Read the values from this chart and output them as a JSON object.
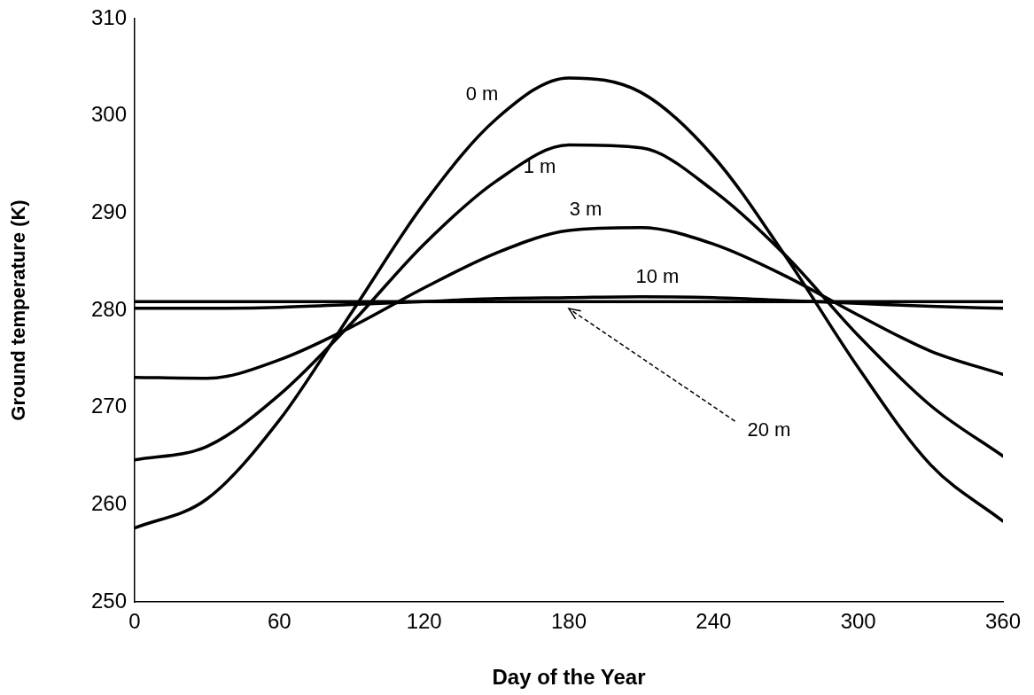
{
  "chart_data": {
    "type": "line",
    "xlabel": "Day of the Year",
    "ylabel": "Ground temperature (K)",
    "x": [
      0,
      30,
      60,
      90,
      120,
      150,
      180,
      210,
      240,
      270,
      300,
      330,
      360
    ],
    "series": [
      {
        "name": "0 m",
        "color": "#000000",
        "values": [
          257.6,
          260.6,
          268.7,
          279.8,
          291.0,
          299.7,
          303.9,
          302.4,
          295.8,
          285.5,
          274.1,
          264.1,
          258.3
        ]
      },
      {
        "name": "1 m",
        "color": "#000000",
        "values": [
          264.6,
          266.0,
          271.3,
          278.7,
          286.8,
          293.3,
          297.0,
          296.7,
          292.3,
          285.6,
          277.4,
          270.2,
          265.0
        ]
      },
      {
        "name": "3 m",
        "color": "#000000",
        "values": [
          273.1,
          273.0,
          274.9,
          278.3,
          282.3,
          285.9,
          288.2,
          288.5,
          286.8,
          283.5,
          279.5,
          275.8,
          273.4
        ]
      },
      {
        "name": "10 m",
        "color": "#000000",
        "values": [
          280.2,
          280.2,
          280.3,
          280.6,
          280.9,
          281.2,
          281.3,
          281.4,
          281.3,
          281.0,
          280.7,
          280.4,
          280.2
        ]
      },
      {
        "name": "20 m",
        "color": "#000000",
        "values": [
          280.9,
          280.9,
          280.9,
          280.9,
          280.9,
          280.9,
          280.9,
          280.9,
          280.9,
          280.9,
          280.9,
          280.9,
          280.9
        ]
      }
    ],
    "xlim": [
      0,
      360
    ],
    "xticks": [
      0,
      60,
      120,
      180,
      240,
      300,
      360
    ],
    "ylim": [
      250,
      310
    ],
    "yticks": [
      250,
      260,
      270,
      280,
      290,
      300,
      310
    ],
    "grid": false,
    "legend": false,
    "marker": "none",
    "line_style": "solid"
  }
}
